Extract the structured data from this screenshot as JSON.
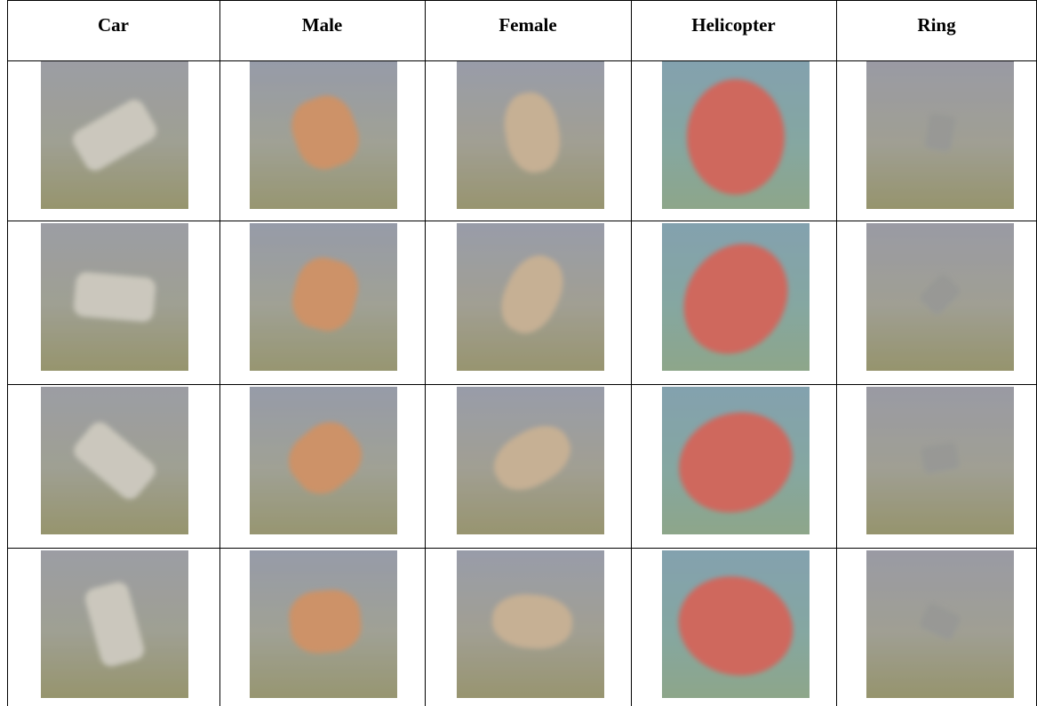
{
  "table": {
    "header": [
      "Car",
      "Male",
      "Female",
      "Helicopter",
      "Ring"
    ]
  }
}
